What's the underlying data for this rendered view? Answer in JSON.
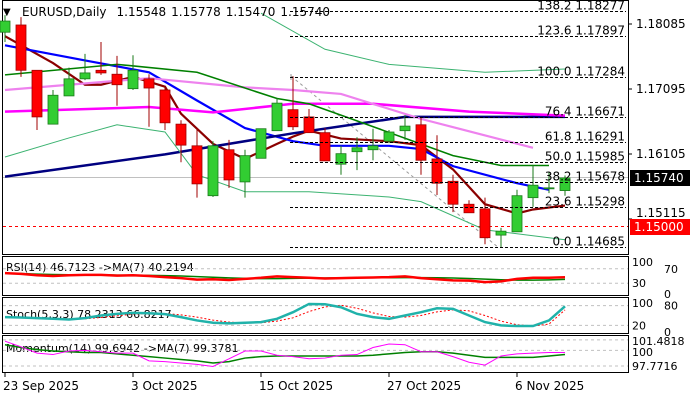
{
  "header": {
    "symbol": "EURUSD,Daily",
    "open": "1.15548",
    "high": "1.15778",
    "low": "1.15470",
    "close": "1.15740"
  },
  "colors": {
    "bull": "#32cd32",
    "bear": "#ff0000",
    "ma_fast": "#8b0000",
    "ma_mid": "#0000ff",
    "ma_slow": "#000080",
    "ma_magenta": "#ff00ff",
    "ma_violet": "#ee82ee",
    "ma_green": "#008000",
    "band": "#3cb371"
  },
  "price_axis": {
    "ticks": [
      "1.18085",
      "1.17095",
      "1.16105",
      "1.15115"
    ],
    "tick_values": [
      1.18085,
      1.17095,
      1.16105,
      1.15115
    ],
    "current_price": "1.15740",
    "alert_price": "1.15000"
  },
  "fib_levels": [
    {
      "label": "138.2 1.18277",
      "price": 1.18277
    },
    {
      "label": "123.6 1.17897",
      "price": 1.17897
    },
    {
      "label": "100.0 1.17284",
      "price": 1.17284
    },
    {
      "label": "76.4 1.16671",
      "price": 1.16671
    },
    {
      "label": "61.8 1.16291",
      "price": 1.16291
    },
    {
      "label": "50.0 1.15985",
      "price": 1.15985
    },
    {
      "label": "38.2 1.15678",
      "price": 1.15678
    },
    {
      "label": "23.6 1.15298",
      "price": 1.15298
    },
    {
      "label": "0.0 1.14685",
      "price": 1.14685
    }
  ],
  "chart_data": {
    "type": "candlestick",
    "title": "EURUSD,Daily",
    "x_labels": [
      {
        "bar": 0,
        "label": "23 Sep 2025"
      },
      {
        "bar": 8,
        "label": "3 Oct 2025"
      },
      {
        "bar": 16,
        "label": "15 Oct 2025"
      },
      {
        "bar": 24,
        "label": "27 Oct 2025"
      },
      {
        "bar": 32,
        "label": "6 Nov 2025"
      }
    ],
    "ylim": [
      1.1445,
      1.1845
    ],
    "ohlc": [
      [
        1.1796,
        1.1822,
        1.1781,
        1.1813
      ],
      [
        1.1807,
        1.1819,
        1.1728,
        1.1738
      ],
      [
        1.1738,
        1.1738,
        1.1647,
        1.1667
      ],
      [
        1.1656,
        1.1708,
        1.1656,
        1.17
      ],
      [
        1.1699,
        1.1742,
        1.1699,
        1.1725
      ],
      [
        1.1725,
        1.1763,
        1.1723,
        1.1734
      ],
      [
        1.1738,
        1.1781,
        1.1731,
        1.1734
      ],
      [
        1.1732,
        1.176,
        1.1684,
        1.1716
      ],
      [
        1.171,
        1.1761,
        1.1708,
        1.1738
      ],
      [
        1.1725,
        1.1732,
        1.1652,
        1.1711
      ],
      [
        1.1708,
        1.1711,
        1.1647,
        1.1658
      ],
      [
        1.1656,
        1.1662,
        1.1598,
        1.1624
      ],
      [
        1.1623,
        1.165,
        1.1544,
        1.1565
      ],
      [
        1.1547,
        1.163,
        1.1545,
        1.1623
      ],
      [
        1.1617,
        1.1632,
        1.1559,
        1.1571
      ],
      [
        1.1568,
        1.1617,
        1.1544,
        1.1608
      ],
      [
        1.1604,
        1.1649,
        1.1604,
        1.1649
      ],
      [
        1.1646,
        1.1696,
        1.1646,
        1.1688
      ],
      [
        1.1678,
        1.1729,
        1.1647,
        1.1652
      ],
      [
        1.1667,
        1.1679,
        1.1643,
        1.1643
      ],
      [
        1.1643,
        1.165,
        1.16,
        1.16
      ],
      [
        1.1595,
        1.1623,
        1.1579,
        1.1611
      ],
      [
        1.1614,
        1.1636,
        1.1586,
        1.162
      ],
      [
        1.1617,
        1.1649,
        1.1601,
        1.1623
      ],
      [
        1.163,
        1.1647,
        1.1627,
        1.1644
      ],
      [
        1.1646,
        1.167,
        1.1632,
        1.1653
      ],
      [
        1.1655,
        1.1667,
        1.1579,
        1.1601
      ],
      [
        1.1603,
        1.1639,
        1.1548,
        1.1566
      ],
      [
        1.1569,
        1.1579,
        1.1522,
        1.1534
      ],
      [
        1.1534,
        1.154,
        1.1521,
        1.1521
      ],
      [
        1.1527,
        1.1544,
        1.1473,
        1.1483
      ],
      [
        1.1487,
        1.1498,
        1.1468,
        1.1493
      ],
      [
        1.1492,
        1.1556,
        1.1492,
        1.1547
      ],
      [
        1.1544,
        1.1594,
        1.153,
        1.1563
      ],
      [
        1.1559,
        1.1583,
        1.1551,
        1.1559
      ],
      [
        1.15548,
        1.15778,
        1.1547,
        1.1574
      ]
    ],
    "lines": [
      {
        "name": "ma-fast",
        "color_key": "ma_fast",
        "width": 2.2,
        "points": [
          [
            0,
            1.179
          ],
          [
            3,
            1.1749
          ],
          [
            5,
            1.1716
          ],
          [
            6,
            1.1716
          ],
          [
            8,
            1.1728
          ],
          [
            10,
            1.1713
          ],
          [
            11,
            1.1672
          ],
          [
            13,
            1.1626
          ],
          [
            15,
            1.1603
          ],
          [
            17,
            1.1626
          ],
          [
            18,
            1.1637
          ],
          [
            19,
            1.1646
          ],
          [
            21,
            1.1634
          ],
          [
            24,
            1.163
          ],
          [
            26,
            1.1624
          ],
          [
            28,
            1.1587
          ],
          [
            30,
            1.1534
          ],
          [
            32,
            1.152
          ],
          [
            33,
            1.1526
          ],
          [
            35,
            1.1532
          ]
        ]
      },
      {
        "name": "ma-mid",
        "color_key": "ma_mid",
        "width": 2.2,
        "points": [
          [
            0,
            1.1776
          ],
          [
            5,
            1.1753
          ],
          [
            9,
            1.1735
          ],
          [
            12,
            1.1692
          ],
          [
            15,
            1.165
          ],
          [
            18,
            1.163
          ],
          [
            20,
            1.1623
          ],
          [
            24,
            1.1623
          ],
          [
            26,
            1.1618
          ],
          [
            28,
            1.1592
          ],
          [
            32,
            1.1566
          ],
          [
            34,
            1.1556
          ]
        ]
      },
      {
        "name": "ma-slow",
        "color_key": "ma_slow",
        "width": 2.5,
        "points": [
          [
            0,
            1.1576
          ],
          [
            10,
            1.161
          ],
          [
            18,
            1.1642
          ],
          [
            25,
            1.1667
          ],
          [
            35,
            1.1667
          ]
        ]
      },
      {
        "name": "ma-magenta",
        "color_key": "ma_magenta",
        "width": 2.5,
        "points": [
          [
            0,
            1.1675
          ],
          [
            9,
            1.1682
          ],
          [
            13,
            1.1674
          ],
          [
            18,
            1.1687
          ],
          [
            23,
            1.1687
          ],
          [
            29,
            1.1675
          ],
          [
            35,
            1.1669
          ]
        ]
      },
      {
        "name": "ma-violet",
        "color_key": "ma_violet",
        "width": 2.2,
        "points": [
          [
            0,
            1.1708
          ],
          [
            9,
            1.1726
          ],
          [
            15,
            1.1712
          ],
          [
            18,
            1.1708
          ],
          [
            21,
            1.1702
          ],
          [
            26,
            1.1664
          ],
          [
            33,
            1.162
          ]
        ]
      },
      {
        "name": "ma-green",
        "color_key": "ma_green",
        "width": 1.6,
        "points": [
          [
            0,
            1.1731
          ],
          [
            7,
            1.1747
          ],
          [
            12,
            1.1735
          ],
          [
            17,
            1.1695
          ],
          [
            19,
            1.1687
          ],
          [
            22,
            1.1661
          ],
          [
            28,
            1.1608
          ],
          [
            31,
            1.1593
          ],
          [
            34,
            1.1593
          ]
        ]
      },
      {
        "name": "band-upper",
        "color_key": "band",
        "width": 1,
        "points": [
          [
            16,
            1.1825
          ],
          [
            20,
            1.177
          ],
          [
            24,
            1.1747
          ],
          [
            30,
            1.1735
          ],
          [
            35,
            1.174
          ]
        ]
      },
      {
        "name": "band-lower",
        "color_key": "band",
        "width": 1,
        "points": [
          [
            0,
            1.1606
          ],
          [
            4,
            1.1635
          ],
          [
            7,
            1.1655
          ],
          [
            10,
            1.1644
          ],
          [
            12,
            1.1579
          ],
          [
            15,
            1.1553
          ],
          [
            19,
            1.1553
          ],
          [
            24,
            1.1545
          ],
          [
            26,
            1.1538
          ],
          [
            30,
            1.1495
          ],
          [
            35,
            1.148
          ]
        ]
      }
    ],
    "indicators": {
      "rsi": {
        "label": "RSI(14) 46.7123  ->MA(7) 40.2194",
        "levels": [
          "100",
          "70",
          "30",
          "0"
        ],
        "level_values": [
          100,
          70,
          30,
          0
        ],
        "values": [
          58,
          56,
          52,
          50,
          52,
          53,
          53,
          51,
          52,
          50,
          47,
          44,
          40,
          41,
          39,
          42,
          45,
          49,
          47,
          45,
          43,
          44,
          45,
          46,
          47,
          49,
          44,
          41,
          38,
          37,
          33,
          35,
          42,
          45,
          45,
          46.7
        ]
      },
      "stoch": {
        "label": "Stoch(5,3,3) 78.2313 66.8217",
        "levels": [
          "100",
          "80",
          "20",
          "0"
        ],
        "level_values": [
          100,
          80,
          20,
          0
        ],
        "main": [
          45,
          44,
          42,
          40,
          38,
          42,
          50,
          55,
          58,
          57,
          54,
          45,
          35,
          28,
          26,
          28,
          30,
          40,
          60,
          85,
          84,
          75,
          55,
          45,
          40,
          50,
          60,
          72,
          70,
          50,
          30,
          20,
          18,
          18,
          35,
          78
        ],
        "signal": [
          46,
          45,
          43,
          41,
          40,
          40,
          44,
          49,
          54,
          56,
          56,
          52,
          45,
          36,
          30,
          27,
          28,
          33,
          43,
          62,
          76,
          81,
          72,
          58,
          47,
          45,
          50,
          61,
          67,
          64,
          50,
          33,
          22,
          18,
          24,
          67
        ]
      },
      "momentum": {
        "label": "Momentum(14) 99.6942  ->MA(7) 99.3781",
        "levels": [
          "101.4818",
          "100",
          "97.7716"
        ],
        "level_values": [
          101.4818,
          100,
          97.7716
        ],
        "values": [
          101.3,
          100.5,
          99.6,
          99.4,
          99.9,
          100.0,
          99.8,
          99.6,
          99.6,
          98.5,
          98.4,
          98.2,
          98.0,
          97.7,
          98.8,
          99.9,
          99.9,
          99.3,
          99.1,
          98.8,
          98.9,
          99.3,
          99.4,
          100.4,
          100.9,
          100.8,
          99.8,
          99.8,
          99.1,
          98.3,
          97.9,
          99.2,
          99.5,
          99.6,
          99.7,
          99.7
        ],
        "ma": [
          100.8,
          100.4,
          100.1,
          99.9,
          99.8,
          99.7,
          99.7,
          99.5,
          99.3,
          99.1,
          98.9,
          98.7,
          98.5,
          98.2,
          98.4,
          98.9,
          99.1,
          99.2,
          99.2,
          99.2,
          99.2,
          99.2,
          99.2,
          99.3,
          99.5,
          99.7,
          99.8,
          99.8,
          99.6,
          99.3,
          99.0,
          99.0,
          99.0,
          99.0,
          99.2,
          99.4
        ]
      }
    }
  }
}
